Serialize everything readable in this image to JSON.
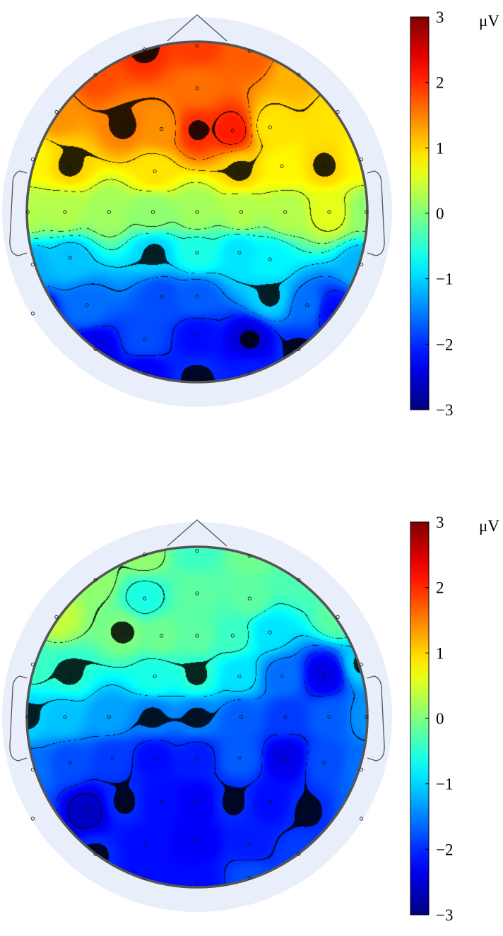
{
  "chart_data": [
    {
      "type": "heatmap",
      "title": "",
      "unit": "μV",
      "colormap": "jet",
      "clim": [
        -3,
        3
      ],
      "colorbar_ticks": [
        3,
        2,
        1,
        0,
        -1,
        -2,
        -3
      ],
      "colorbar_tick_labels": [
        "3",
        "2",
        "1",
        "0",
        "−1",
        "−2",
        "−3"
      ],
      "electrodes": [
        {
          "pos": [
            -0.31,
            0.96
          ],
          "value": 2.0
        },
        {
          "pos": [
            0.0,
            0.98
          ],
          "value": 1.9
        },
        {
          "pos": [
            0.31,
            0.95
          ],
          "value": 1.7
        },
        {
          "pos": [
            -0.6,
            0.81
          ],
          "value": 1.8
        },
        {
          "pos": [
            0.0,
            0.73
          ],
          "value": 1.6
        },
        {
          "pos": [
            0.6,
            0.81
          ],
          "value": 1.2
        },
        {
          "pos": [
            -0.83,
            0.59
          ],
          "value": 1.4
        },
        {
          "pos": [
            -0.43,
            0.5
          ],
          "value": 1.5
        },
        {
          "pos": [
            -0.21,
            0.49
          ],
          "value": 1.4
        },
        {
          "pos": [
            0.0,
            0.48
          ],
          "value": 2.0
        },
        {
          "pos": [
            0.21,
            0.48
          ],
          "value": 2.1
        },
        {
          "pos": [
            0.43,
            0.5
          ],
          "value": 0.9
        },
        {
          "pos": [
            0.83,
            0.59
          ],
          "value": 0.9
        },
        {
          "pos": [
            -0.97,
            0.31
          ],
          "value": 0.8
        },
        {
          "pos": [
            -0.75,
            0.27
          ],
          "value": 1.0
        },
        {
          "pos": [
            -0.25,
            0.24
          ],
          "value": 0.9
        },
        {
          "pos": [
            0.25,
            0.24
          ],
          "value": 1.0
        },
        {
          "pos": [
            0.5,
            0.27
          ],
          "value": 0.8
        },
        {
          "pos": [
            0.75,
            0.27
          ],
          "value": 1.0
        },
        {
          "pos": [
            0.97,
            0.31
          ],
          "value": 0.8
        },
        {
          "pos": [
            -1.0,
            0.0
          ],
          "value": 0.3
        },
        {
          "pos": [
            -0.78,
            0.0
          ],
          "value": 0.3
        },
        {
          "pos": [
            -0.52,
            0.0
          ],
          "value": 0.2
        },
        {
          "pos": [
            -0.26,
            0.0
          ],
          "value": 0.1
        },
        {
          "pos": [
            0.0,
            0.0
          ],
          "value": 0.2
        },
        {
          "pos": [
            0.26,
            0.0
          ],
          "value": 0.3
        },
        {
          "pos": [
            0.52,
            0.0
          ],
          "value": 0.3
        },
        {
          "pos": [
            0.78,
            0.0
          ],
          "value": 0.6
        },
        {
          "pos": [
            1.0,
            0.0
          ],
          "value": 0.1
        },
        {
          "pos": [
            -0.97,
            -0.31
          ],
          "value": -1.2
        },
        {
          "pos": [
            -0.75,
            -0.27
          ],
          "value": -1.1
        },
        {
          "pos": [
            -0.25,
            -0.24
          ],
          "value": -1.0
        },
        {
          "pos": [
            0.0,
            -0.24
          ],
          "value": -0.6
        },
        {
          "pos": [
            0.25,
            -0.24
          ],
          "value": -0.9
        },
        {
          "pos": [
            0.43,
            -0.28
          ],
          "value": -0.8
        },
        {
          "pos": [
            0.97,
            -0.31
          ],
          "value": -1.2
        },
        {
          "pos": [
            -0.97,
            -0.6
          ],
          "value": -2.5
        },
        {
          "pos": [
            -0.65,
            -0.55
          ],
          "value": -1.6
        },
        {
          "pos": [
            -0.21,
            -0.5
          ],
          "value": -1.8
        },
        {
          "pos": [
            0.0,
            -0.5
          ],
          "value": -1.7
        },
        {
          "pos": [
            0.43,
            -0.5
          ],
          "value": -1.0
        },
        {
          "pos": [
            0.65,
            -0.55
          ],
          "value": -1.6
        },
        {
          "pos": [
            0.79,
            -0.58
          ],
          "value": -2.2
        },
        {
          "pos": [
            -0.6,
            -0.81
          ],
          "value": -2.4
        },
        {
          "pos": [
            -0.31,
            -0.75
          ],
          "value": -1.8
        },
        {
          "pos": [
            0.0,
            -0.73
          ],
          "value": -2.2
        },
        {
          "pos": [
            0.31,
            -0.75
          ],
          "value": -2.5
        },
        {
          "pos": [
            0.6,
            -0.81
          ],
          "value": -2.0
        },
        {
          "pos": [
            -0.31,
            -0.95
          ],
          "value": -2.3
        },
        {
          "pos": [
            0.0,
            -0.98
          ],
          "value": -2.0
        },
        {
          "pos": [
            0.31,
            -0.95
          ],
          "value": -2.1
        }
      ]
    },
    {
      "type": "heatmap",
      "title": "",
      "unit": "μV",
      "colormap": "jet",
      "clim": [
        -3,
        3
      ],
      "colorbar_ticks": [
        3,
        2,
        1,
        0,
        -1,
        -2,
        -3
      ],
      "colorbar_tick_labels": [
        "3",
        "2",
        "1",
        "0",
        "−1",
        "−2",
        "−3"
      ],
      "electrodes": [
        {
          "pos": [
            -0.31,
            0.96
          ],
          "value": 0.1
        },
        {
          "pos": [
            0.0,
            0.98
          ],
          "value": -0.4
        },
        {
          "pos": [
            0.31,
            0.95
          ],
          "value": -0.1
        },
        {
          "pos": [
            -0.6,
            0.81
          ],
          "value": 0.1
        },
        {
          "pos": [
            -0.31,
            0.7
          ],
          "value": -0.6
        },
        {
          "pos": [
            0.0,
            0.73
          ],
          "value": -0.2
        },
        {
          "pos": [
            0.31,
            0.7
          ],
          "value": -0.2
        },
        {
          "pos": [
            0.6,
            0.81
          ],
          "value": -0.3
        },
        {
          "pos": [
            -0.83,
            0.59
          ],
          "value": 0.4
        },
        {
          "pos": [
            -0.43,
            0.5
          ],
          "value": 0.0
        },
        {
          "pos": [
            -0.21,
            0.48
          ],
          "value": -0.1
        },
        {
          "pos": [
            0.0,
            0.48
          ],
          "value": -0.2
        },
        {
          "pos": [
            0.21,
            0.48
          ],
          "value": -0.4
        },
        {
          "pos": [
            0.43,
            0.5
          ],
          "value": -0.9
        },
        {
          "pos": [
            0.83,
            0.59
          ],
          "value": -0.2
        },
        {
          "pos": [
            -0.97,
            0.31
          ],
          "value": -0.4
        },
        {
          "pos": [
            -0.75,
            0.25
          ],
          "value": -0.5
        },
        {
          "pos": [
            -0.25,
            0.24
          ],
          "value": -0.6
        },
        {
          "pos": [
            0.0,
            0.24
          ],
          "value": -0.5
        },
        {
          "pos": [
            0.25,
            0.24
          ],
          "value": -0.9
        },
        {
          "pos": [
            0.5,
            0.24
          ],
          "value": -1.6
        },
        {
          "pos": [
            0.75,
            0.25
          ],
          "value": -2.4
        },
        {
          "pos": [
            0.97,
            0.31
          ],
          "value": -1.0
        },
        {
          "pos": [
            -1.0,
            0.0
          ],
          "value": -1.0
        },
        {
          "pos": [
            -0.78,
            0.0
          ],
          "value": -1.1
        },
        {
          "pos": [
            -0.52,
            0.0
          ],
          "value": -1.3
        },
        {
          "pos": [
            -0.26,
            0.0
          ],
          "value": -1.5
        },
        {
          "pos": [
            0.0,
            0.0
          ],
          "value": -1.5
        },
        {
          "pos": [
            0.26,
            0.0
          ],
          "value": -1.7
        },
        {
          "pos": [
            0.52,
            0.0
          ],
          "value": -1.9
        },
        {
          "pos": [
            0.78,
            0.0
          ],
          "value": -1.7
        },
        {
          "pos": [
            1.0,
            0.0
          ],
          "value": -1.4
        },
        {
          "pos": [
            -0.97,
            -0.31
          ],
          "value": -1.6
        },
        {
          "pos": [
            -0.75,
            -0.27
          ],
          "value": -1.8
        },
        {
          "pos": [
            -0.5,
            -0.24
          ],
          "value": -1.9
        },
        {
          "pos": [
            -0.25,
            -0.24
          ],
          "value": -2.2
        },
        {
          "pos": [
            0.0,
            -0.24
          ],
          "value": -2.1
        },
        {
          "pos": [
            0.25,
            -0.24
          ],
          "value": -1.7
        },
        {
          "pos": [
            0.52,
            -0.24
          ],
          "value": -2.4
        },
        {
          "pos": [
            0.75,
            -0.27
          ],
          "value": -1.8
        },
        {
          "pos": [
            0.97,
            -0.31
          ],
          "value": -1.6
        },
        {
          "pos": [
            -0.97,
            -0.6
          ],
          "value": -1.7
        },
        {
          "pos": [
            -0.65,
            -0.55
          ],
          "value": -2.6
        },
        {
          "pos": [
            -0.43,
            -0.5
          ],
          "value": -2.0
        },
        {
          "pos": [
            -0.21,
            -0.5
          ],
          "value": -2.2
        },
        {
          "pos": [
            0.0,
            -0.5
          ],
          "value": -2.3
        },
        {
          "pos": [
            0.21,
            -0.5
          ],
          "value": -2.0
        },
        {
          "pos": [
            0.43,
            -0.5
          ],
          "value": -2.2
        },
        {
          "pos": [
            0.65,
            -0.55
          ],
          "value": -2.0
        },
        {
          "pos": [
            0.97,
            -0.6
          ],
          "value": -1.6
        },
        {
          "pos": [
            -0.6,
            -0.81
          ],
          "value": -2.0
        },
        {
          "pos": [
            -0.31,
            -0.75
          ],
          "value": -2.2
        },
        {
          "pos": [
            0.0,
            -0.73
          ],
          "value": -2.3
        },
        {
          "pos": [
            0.31,
            -0.75
          ],
          "value": -2.1
        },
        {
          "pos": [
            0.6,
            -0.81
          ],
          "value": -1.9
        },
        {
          "pos": [
            -0.31,
            -0.95
          ],
          "value": -2.2
        },
        {
          "pos": [
            0.0,
            -0.98
          ],
          "value": -2.2
        },
        {
          "pos": [
            0.31,
            -0.95
          ],
          "value": -1.8
        }
      ]
    }
  ]
}
